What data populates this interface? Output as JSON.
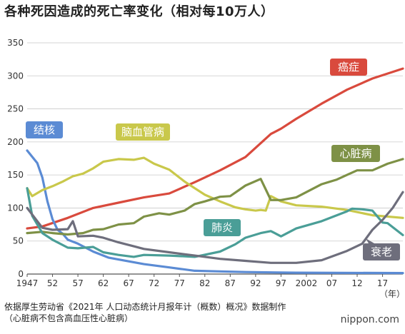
{
  "title": "各种死因造成的死亡率变化（相对每10万人）",
  "source_lines": [
    "依据厚生劳动省《2021年 人口动态统计月报年计（概数）概况》数据制作",
    "（心脏病不包含高血压性心脏病）"
  ],
  "credit": "nippon.com",
  "chart_data": {
    "type": "line",
    "title": "各种死因造成的死亡率变化（相对每10万人）",
    "xlabel": "（年）",
    "ylabel": "",
    "xlim": [
      1947,
      2021
    ],
    "ylim": [
      0,
      350
    ],
    "grid": true,
    "yticks": [
      0,
      50,
      100,
      150,
      200,
      250,
      300,
      350
    ],
    "xtick_values": [
      1947,
      1952,
      1957,
      1962,
      1967,
      1972,
      1977,
      1982,
      1987,
      1992,
      1997,
      2002,
      2007,
      2012,
      2017
    ],
    "xtick_labels": [
      "1947",
      "52",
      "57",
      "62",
      "67",
      "72",
      "77",
      "82",
      "87",
      "92",
      "97",
      "2002",
      "07",
      "12",
      "17"
    ],
    "x_unit_label": "（年）",
    "series": [
      {
        "name": "癌症",
        "color": "#d94a3d",
        "x": [
          1947,
          1950,
          1955,
          1960,
          1965,
          1970,
          1975,
          1980,
          1985,
          1990,
          1995,
          1997,
          2000,
          2005,
          2010,
          2015,
          2021
        ],
        "y": [
          69,
          72,
          85,
          100,
          108,
          116,
          122,
          139,
          157,
          177,
          212,
          220,
          235,
          258,
          279,
          296,
          311
        ]
      },
      {
        "name": "结核",
        "color": "#5b8bd4",
        "x": [
          1947,
          1949,
          1950,
          1951,
          1952,
          1953,
          1954,
          1955,
          1957,
          1960,
          1963,
          1965,
          1970,
          1975,
          1980,
          1985,
          1990,
          2000,
          2021
        ],
        "y": [
          187,
          168,
          146,
          110,
          83,
          67,
          61,
          52,
          46,
          34,
          25,
          22,
          15,
          10,
          5,
          4,
          3,
          2,
          1.5
        ]
      },
      {
        "name": "脑血管病",
        "color": "#c9c84b",
        "x": [
          1947,
          1948,
          1950,
          1952,
          1954,
          1956,
          1958,
          1960,
          1962,
          1965,
          1968,
          1970,
          1972,
          1975,
          1978,
          1980,
          1982,
          1985,
          1988,
          1990,
          1992,
          1993,
          1994,
          1995,
          1997,
          2000,
          2005,
          2010,
          2015,
          2021
        ],
        "y": [
          130,
          118,
          127,
          133,
          140,
          148,
          152,
          160,
          170,
          174,
          173,
          176,
          167,
          158,
          140,
          130,
          120,
          110,
          101,
          98,
          96,
          97,
          96,
          118,
          110,
          104,
          102,
          97,
          89,
          85
        ]
      },
      {
        "name": "心脏病",
        "color": "#7e9146",
        "x": [
          1947,
          1950,
          1952,
          1955,
          1958,
          1960,
          1962,
          1965,
          1968,
          1970,
          1973,
          1975,
          1978,
          1980,
          1982,
          1985,
          1987,
          1990,
          1993,
          1994,
          1995,
          1997,
          2000,
          2005,
          2008,
          2010,
          2012,
          2015,
          2018,
          2021
        ],
        "y": [
          62,
          64,
          62,
          60,
          62,
          67,
          68,
          75,
          77,
          87,
          92,
          90,
          96,
          106,
          110,
          117,
          118,
          134,
          144,
          128,
          112,
          112,
          116,
          136,
          143,
          150,
          157,
          157,
          167,
          174
        ]
      },
      {
        "name": "肺炎",
        "color": "#4a9e97",
        "x": [
          1947,
          1948,
          1950,
          1952,
          1955,
          1957,
          1960,
          1962,
          1965,
          1968,
          1970,
          1975,
          1980,
          1985,
          1988,
          1990,
          1993,
          1995,
          1997,
          2000,
          2005,
          2010,
          2011,
          2013,
          2015,
          2017,
          2018,
          2021
        ],
        "y": [
          130,
          88,
          62,
          52,
          40,
          39,
          41,
          33,
          29,
          26,
          29,
          28,
          26,
          34,
          45,
          55,
          62,
          65,
          57,
          69,
          80,
          95,
          99,
          98,
          96,
          78,
          77,
          59
        ]
      },
      {
        "name": "衰老",
        "color": "#6e6e7c",
        "x": [
          1947,
          1950,
          1952,
          1955,
          1956,
          1957,
          1960,
          1962,
          1965,
          1968,
          1970,
          1975,
          1980,
          1985,
          1990,
          1995,
          2000,
          2005,
          2010,
          2013,
          2015,
          2017,
          2019,
          2021
        ],
        "y": [
          100,
          70,
          67,
          68,
          80,
          57,
          58,
          55,
          48,
          42,
          38,
          33,
          28,
          23,
          20,
          17,
          17,
          21,
          35,
          46,
          67,
          82,
          100,
          124
        ]
      }
    ],
    "legend": [
      {
        "label": "癌症",
        "position": "upper-middle-right"
      },
      {
        "label": "结核",
        "position": "upper-left"
      },
      {
        "label": "脑血管病",
        "position": "upper-middle"
      },
      {
        "label": "心脏病",
        "position": "right"
      },
      {
        "label": "肺炎",
        "position": "lower-middle"
      },
      {
        "label": "衰老",
        "position": "lower-right"
      }
    ]
  }
}
